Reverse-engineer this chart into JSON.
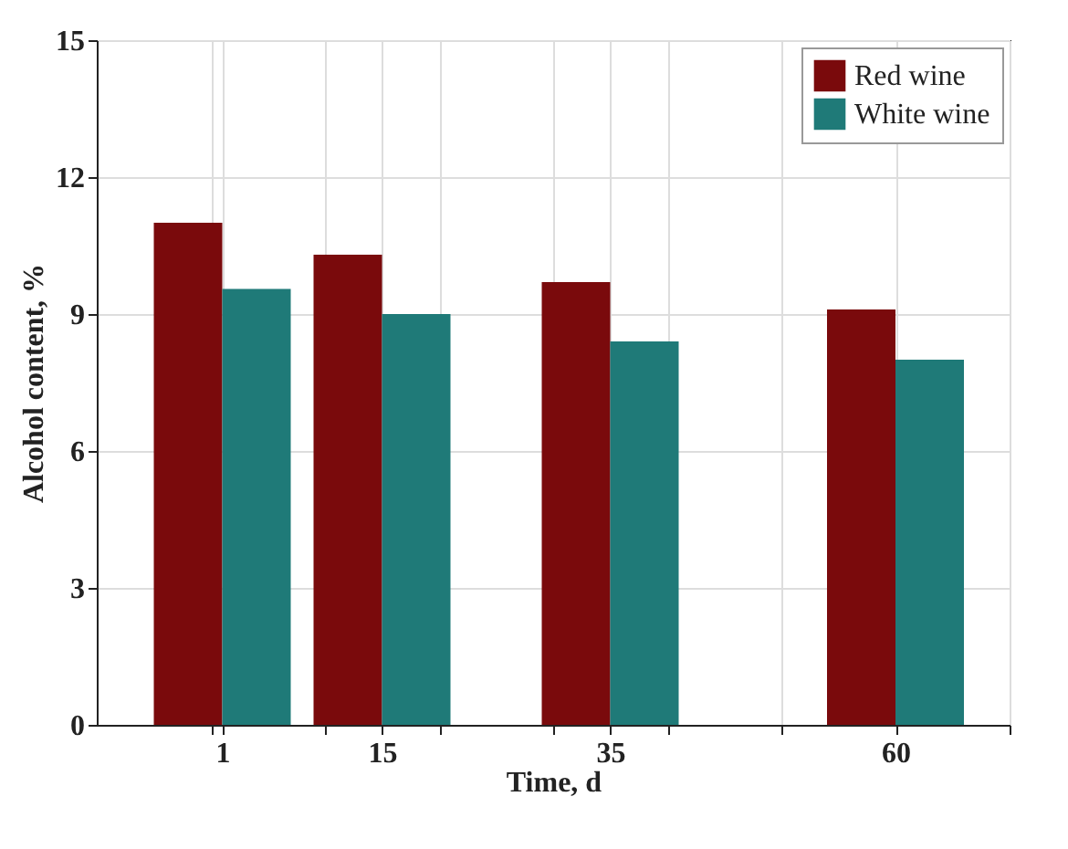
{
  "chart_data": {
    "type": "bar",
    "xlabel": "Time, d",
    "ylabel": "Alcohol content, %",
    "x": [
      1,
      15,
      35,
      60
    ],
    "series": [
      {
        "name": "Red wine",
        "color": "#7a0a0c",
        "values": [
          11.0,
          10.3,
          9.7,
          9.1
        ]
      },
      {
        "name": "White wine",
        "color": "#1f7a78",
        "values": [
          9.55,
          9.0,
          8.4,
          8.0
        ]
      }
    ],
    "xlim": [
      -10,
      70
    ],
    "xticks": [
      {
        "value": 0,
        "label": null
      },
      1,
      {
        "value": 10,
        "label": null
      },
      15,
      {
        "value": 20,
        "label": null
      },
      {
        "value": 30,
        "label": null
      },
      35,
      {
        "value": 40,
        "label": null
      },
      {
        "value": 50,
        "label": null
      },
      60,
      {
        "value": 70,
        "label": null
      }
    ],
    "ylim": [
      0,
      15
    ],
    "yticks": [
      0,
      3,
      6,
      9,
      12,
      15
    ],
    "grid": true,
    "legend": "top right"
  }
}
